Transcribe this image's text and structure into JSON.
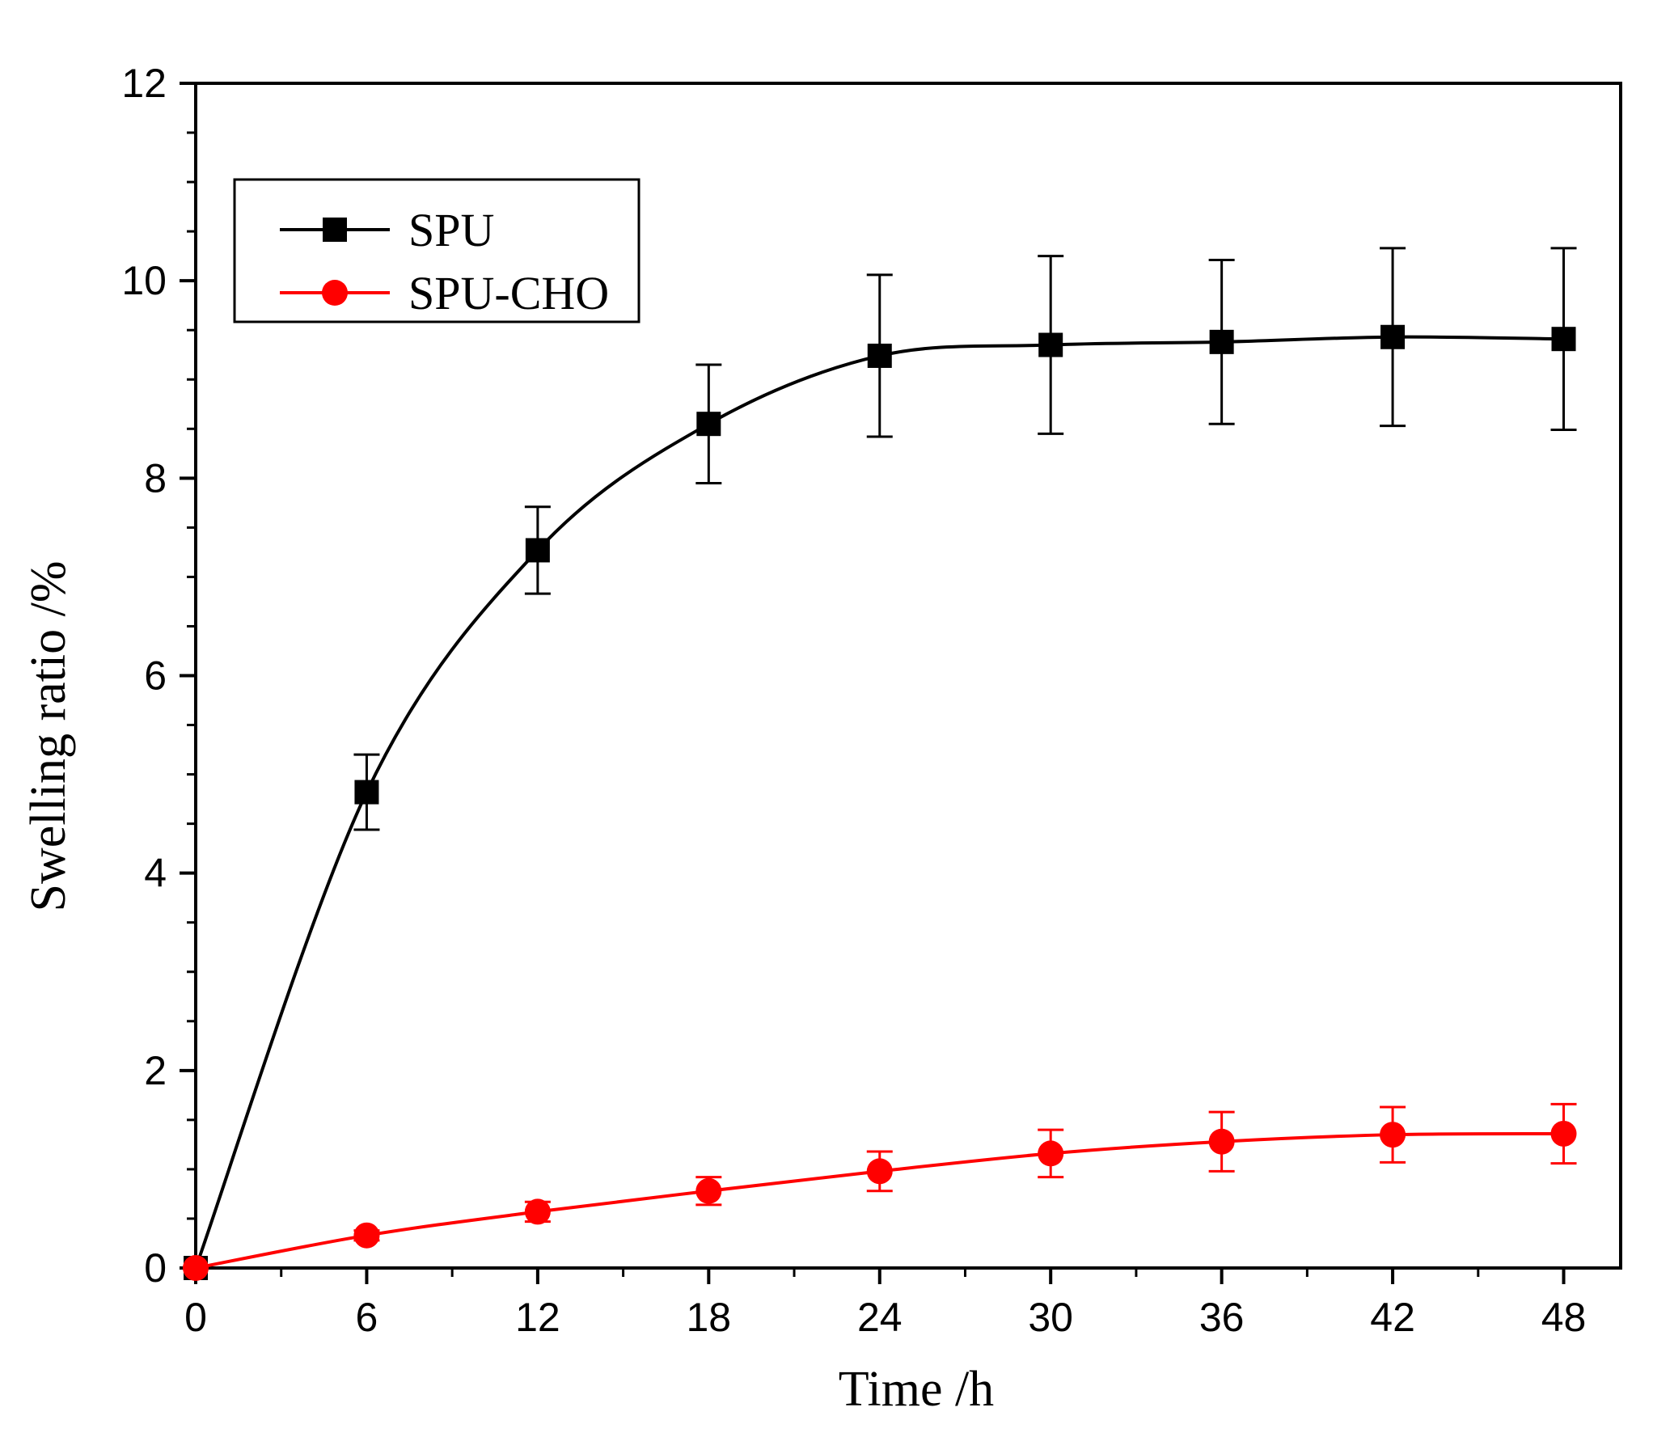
{
  "chart_data": {
    "type": "line",
    "xlabel": "Time /h",
    "ylabel": "Swelling ratio /%",
    "xlim": [
      0,
      50
    ],
    "ylim": [
      0,
      12
    ],
    "xticks": [
      0,
      6,
      12,
      18,
      24,
      30,
      36,
      42,
      48
    ],
    "yticks": [
      0,
      2,
      4,
      6,
      8,
      10,
      12
    ],
    "legend_position": "top-left",
    "grid": false,
    "series": [
      {
        "name": "SPU",
        "color": "#000000",
        "marker": "square",
        "x": [
          0,
          6,
          12,
          18,
          24,
          30,
          36,
          42,
          48
        ],
        "values": [
          0,
          4.82,
          7.27,
          8.55,
          9.24,
          9.35,
          9.38,
          9.43,
          9.41
        ],
        "errors": [
          0,
          0.38,
          0.44,
          0.6,
          0.82,
          0.9,
          0.83,
          0.9,
          0.92
        ],
        "fit": "smooth"
      },
      {
        "name": "SPU-CHO",
        "color": "#ff0000",
        "marker": "circle",
        "x": [
          0,
          6,
          12,
          18,
          24,
          30,
          36,
          42,
          48
        ],
        "values": [
          0,
          0.33,
          0.57,
          0.78,
          0.98,
          1.16,
          1.28,
          1.35,
          1.36
        ],
        "errors": [
          0,
          0.05,
          0.1,
          0.14,
          0.2,
          0.24,
          0.3,
          0.28,
          0.3
        ],
        "fit": "smooth"
      }
    ]
  }
}
